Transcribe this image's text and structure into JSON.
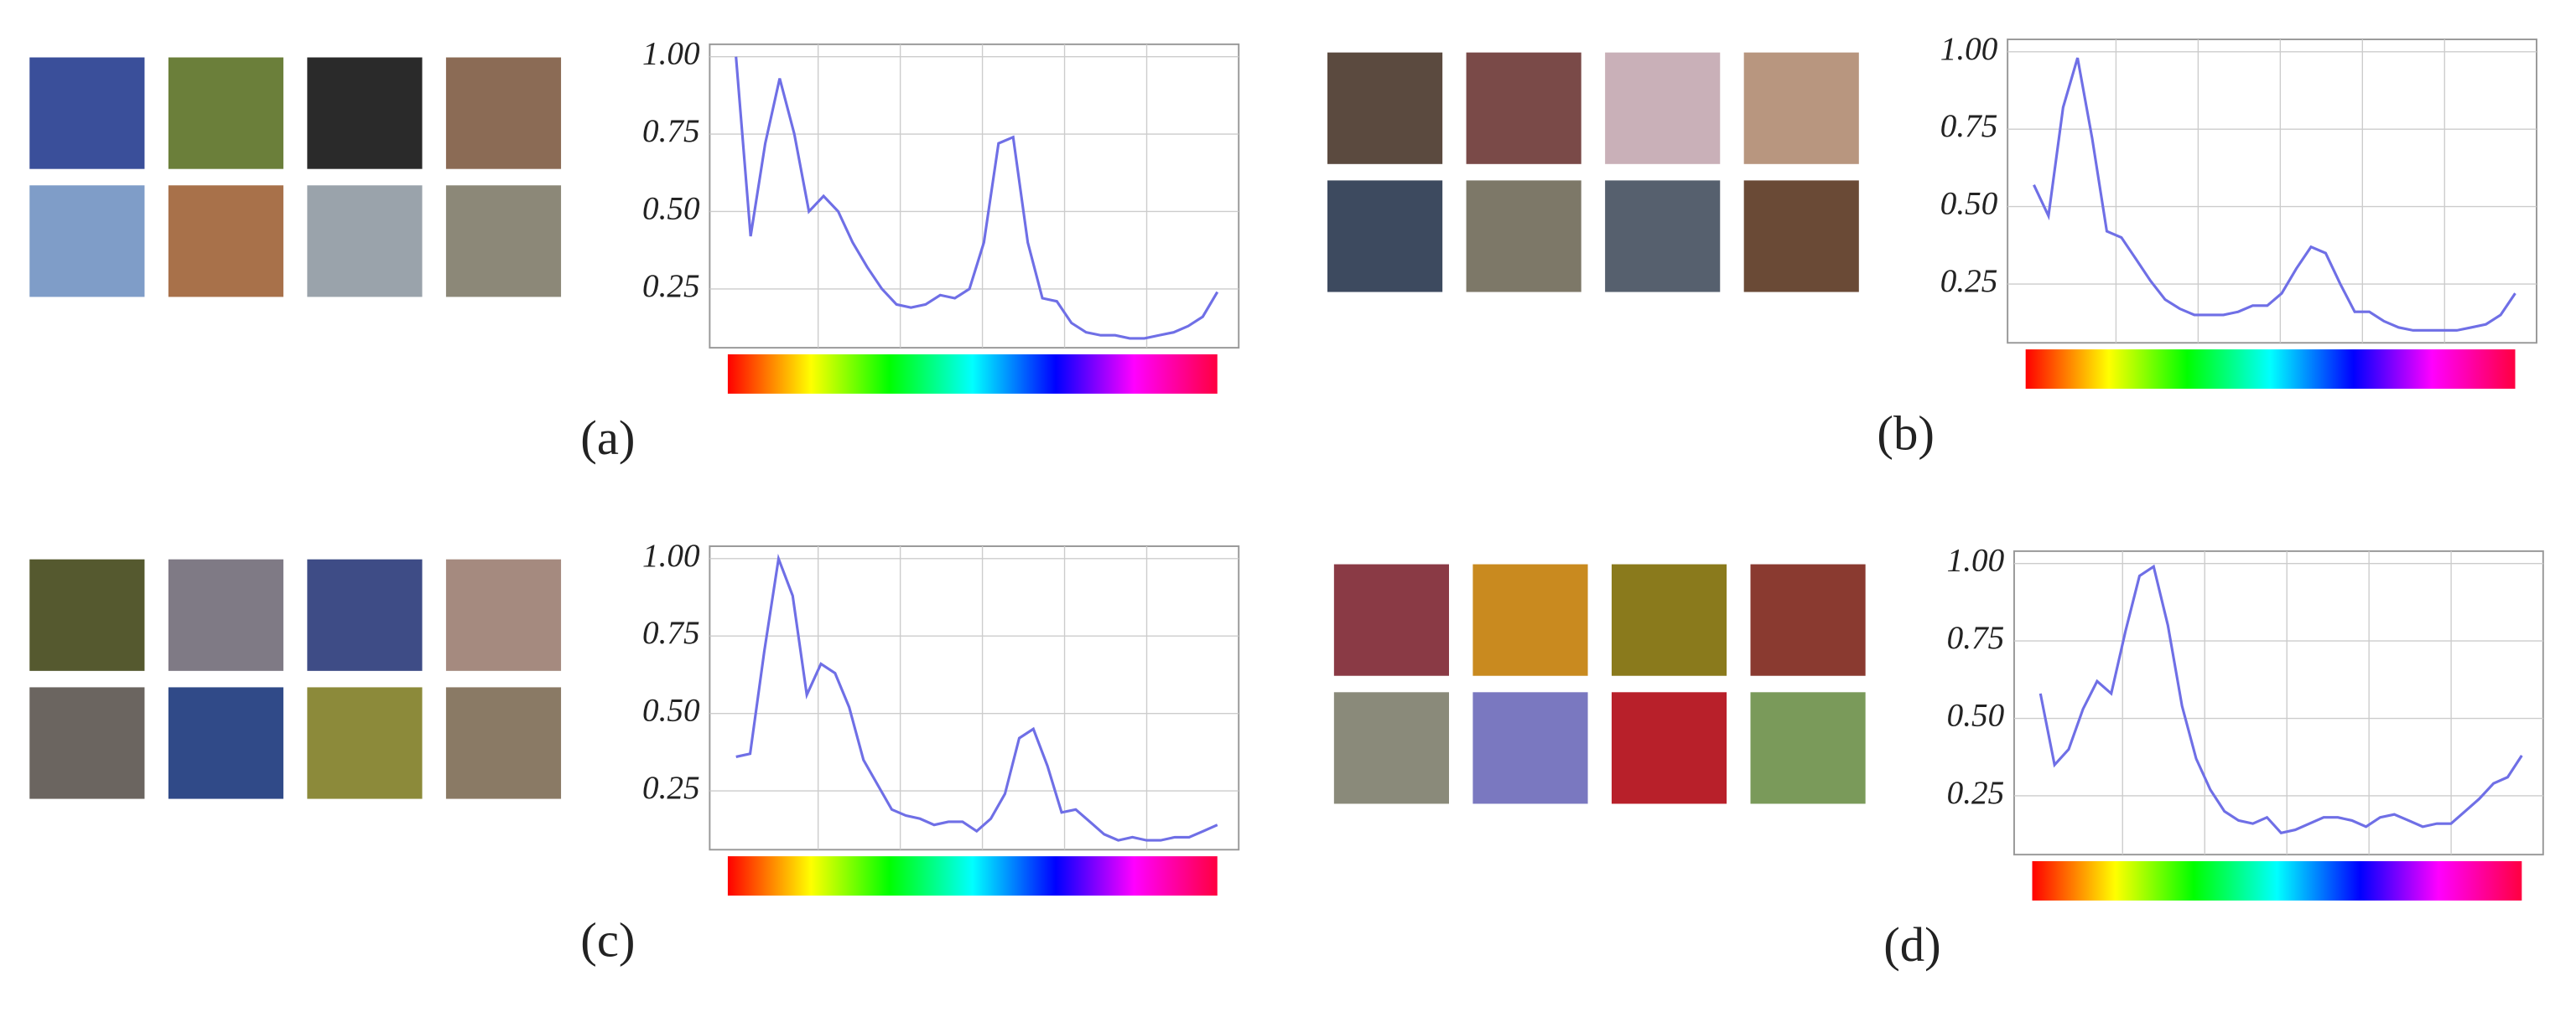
{
  "chart_data": [
    {
      "type": "line",
      "caption": "(a)",
      "grid": true,
      "ylim": [
        0.06,
        1.04
      ],
      "yticks": [
        {
          "value": 0.25,
          "label": "0.25"
        },
        {
          "value": 0.5,
          "label": "0.50"
        },
        {
          "value": 0.75,
          "label": "0.75"
        },
        {
          "value": 1,
          "label": "1.00"
        }
      ],
      "series": [
        {
          "color": "#6f6fe6",
          "values": [
            1.0,
            0.42,
            0.72,
            0.93,
            0.75,
            0.5,
            0.55,
            0.5,
            0.4,
            0.32,
            0.25,
            0.2,
            0.19,
            0.2,
            0.23,
            0.22,
            0.25,
            0.4,
            0.72,
            0.74,
            0.4,
            0.22,
            0.21,
            0.14,
            0.11,
            0.1,
            0.1,
            0.09,
            0.09,
            0.1,
            0.11,
            0.13,
            0.16,
            0.24
          ]
        }
      ]
    },
    {
      "type": "line",
      "caption": "(b)",
      "grid": true,
      "ylim": [
        0.06,
        1.04
      ],
      "yticks": [
        {
          "value": 0.25,
          "label": "0.25"
        },
        {
          "value": 0.5,
          "label": "0.50"
        },
        {
          "value": 0.75,
          "label": "0.75"
        },
        {
          "value": 1,
          "label": "1.00"
        }
      ],
      "series": [
        {
          "color": "#6f6fe6",
          "values": [
            0.57,
            0.47,
            0.82,
            0.98,
            0.72,
            0.42,
            0.4,
            0.33,
            0.26,
            0.2,
            0.17,
            0.15,
            0.15,
            0.15,
            0.16,
            0.18,
            0.18,
            0.22,
            0.3,
            0.37,
            0.35,
            0.25,
            0.16,
            0.16,
            0.13,
            0.11,
            0.1,
            0.1,
            0.1,
            0.1,
            0.11,
            0.12,
            0.15,
            0.22
          ]
        }
      ]
    },
    {
      "type": "line",
      "caption": "(c)",
      "grid": true,
      "ylim": [
        0.06,
        1.04
      ],
      "yticks": [
        {
          "value": 0.25,
          "label": "0.25"
        },
        {
          "value": 0.5,
          "label": "0.50"
        },
        {
          "value": 0.75,
          "label": "0.75"
        },
        {
          "value": 1,
          "label": "1.00"
        }
      ],
      "series": [
        {
          "color": "#6f6fe6",
          "values": [
            0.36,
            0.37,
            0.7,
            1.0,
            0.88,
            0.56,
            0.66,
            0.63,
            0.52,
            0.35,
            0.27,
            0.19,
            0.17,
            0.16,
            0.14,
            0.15,
            0.15,
            0.12,
            0.16,
            0.24,
            0.42,
            0.45,
            0.33,
            0.18,
            0.19,
            0.15,
            0.11,
            0.09,
            0.1,
            0.09,
            0.09,
            0.1,
            0.1,
            0.12,
            0.14
          ]
        }
      ]
    },
    {
      "type": "line",
      "caption": "(d)",
      "grid": true,
      "ylim": [
        0.06,
        1.04
      ],
      "yticks": [
        {
          "value": 0.25,
          "label": "0.25"
        },
        {
          "value": 0.5,
          "label": "0.50"
        },
        {
          "value": 0.75,
          "label": "0.75"
        },
        {
          "value": 1,
          "label": "1.00"
        }
      ],
      "series": [
        {
          "color": "#6f6fe6",
          "values": [
            0.58,
            0.35,
            0.4,
            0.53,
            0.62,
            0.58,
            0.78,
            0.96,
            0.99,
            0.8,
            0.54,
            0.37,
            0.27,
            0.2,
            0.17,
            0.16,
            0.18,
            0.13,
            0.14,
            0.16,
            0.18,
            0.18,
            0.17,
            0.15,
            0.18,
            0.19,
            0.17,
            0.15,
            0.16,
            0.16,
            0.2,
            0.24,
            0.29,
            0.31,
            0.38
          ]
        }
      ]
    }
  ]
}
